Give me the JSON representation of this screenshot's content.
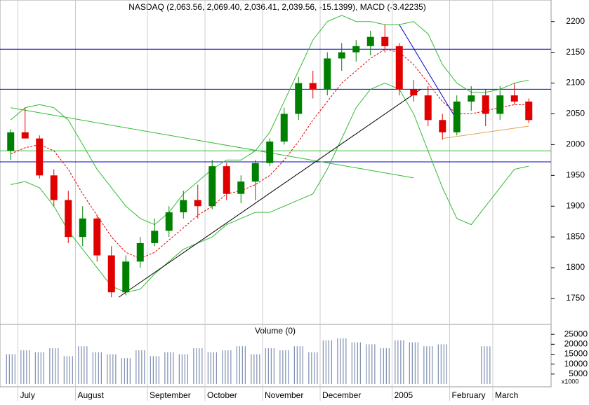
{
  "chart_data": [
    {
      "type": "candlestick",
      "title": "NASDAQ (2,063.56, 2,069.40, 2,036.41, 2,039.56, -15.1399), MACD (-3.42235)",
      "categories": [
        null,
        "July",
        null,
        null,
        null,
        "August",
        null,
        null,
        null,
        null,
        "September",
        null,
        null,
        null,
        "October",
        null,
        null,
        null,
        "November",
        null,
        null,
        null,
        "December",
        null,
        null,
        null,
        null,
        "2005",
        null,
        null,
        null,
        "February",
        null,
        null,
        "March",
        null,
        null
      ],
      "open": [
        1990,
        2020,
        2010,
        1950,
        1910,
        1850,
        1880,
        1820,
        1760,
        1810,
        1840,
        1860,
        1890,
        1910,
        1900,
        1965,
        1920,
        1940,
        1970,
        2005,
        2050,
        2100,
        2090,
        2140,
        2150,
        2160,
        2175,
        2160,
        2090,
        2080,
        2040,
        2020,
        2070,
        2080,
        2050,
        2080,
        2070
      ],
      "high": [
        2025,
        2060,
        2015,
        1960,
        1925,
        1900,
        1885,
        1835,
        1820,
        1850,
        1880,
        1900,
        1925,
        1935,
        1975,
        1970,
        1950,
        1975,
        2010,
        2060,
        2110,
        2120,
        2150,
        2165,
        2170,
        2185,
        2195,
        2165,
        2105,
        2095,
        2050,
        2080,
        2095,
        2090,
        2095,
        2100,
        2075
      ],
      "low": [
        1975,
        2010,
        1945,
        1900,
        1840,
        1835,
        1810,
        1752,
        1755,
        1800,
        1835,
        1850,
        1880,
        1880,
        1895,
        1910,
        1905,
        1910,
        1965,
        2000,
        2040,
        2075,
        2080,
        2120,
        2135,
        2145,
        2150,
        2080,
        2070,
        2030,
        2008,
        2015,
        2055,
        2030,
        2040,
        2065,
        2035
      ],
      "close": [
        2020,
        2010,
        1950,
        1910,
        1850,
        1880,
        1820,
        1760,
        1810,
        1840,
        1860,
        1890,
        1910,
        1900,
        1965,
        1920,
        1940,
        1970,
        2005,
        2050,
        2100,
        2090,
        2140,
        2150,
        2160,
        2175,
        2160,
        2090,
        2080,
        2040,
        2020,
        2070,
        2080,
        2050,
        2080,
        2070,
        2040
      ],
      "up_color": "#008000",
      "down_color": "#e00000",
      "overlays": [
        {
          "color": "#e00000",
          "dashed": true,
          "values": [
            1985,
            1995,
            2000,
            1990,
            1960,
            1920,
            1885,
            1850,
            1825,
            1815,
            1825,
            1845,
            1865,
            1885,
            1900,
            1920,
            1925,
            1935,
            1950,
            1975,
            2005,
            2040,
            2070,
            2100,
            2120,
            2140,
            2155,
            2150,
            2130,
            2100,
            2070,
            2050,
            2050,
            2055,
            2060,
            2065,
            2065
          ]
        },
        {
          "color": "#33bb33",
          "dashed": false,
          "values": [
            2040,
            2060,
            2065,
            2060,
            2040,
            2000,
            1960,
            1930,
            1900,
            1880,
            1870,
            1890,
            1920,
            1940,
            1960,
            1975,
            1975,
            1990,
            2020,
            2070,
            2120,
            2170,
            2200,
            2210,
            2200,
            2200,
            2195,
            2195,
            2200,
            2180,
            2130,
            2100,
            2085,
            2085,
            2090,
            2100,
            2105
          ]
        },
        {
          "color": "#33bb33",
          "dashed": false,
          "values": [
            1935,
            1940,
            1930,
            1900,
            1860,
            1830,
            1800,
            1770,
            1760,
            1765,
            1790,
            1810,
            1830,
            1840,
            1850,
            1870,
            1880,
            1890,
            1890,
            1900,
            1910,
            1920,
            1960,
            2010,
            2060,
            2090,
            2100,
            2090,
            2050,
            1990,
            1930,
            1880,
            1870,
            1900,
            1930,
            1960,
            1965
          ]
        }
      ],
      "hlines": [
        {
          "value": 2155,
          "color": "#0000cc"
        },
        {
          "value": 2090,
          "color": "#0000cc"
        },
        {
          "value": 1990,
          "color": "#33bb33"
        },
        {
          "value": 1972,
          "color": "#0000cc"
        }
      ],
      "trendlines": [
        {
          "x": [
            7.5,
            28.5
          ],
          "y": [
            1752,
            2090
          ],
          "color": "#000000"
        },
        {
          "x": [
            0,
            28
          ],
          "y": [
            2060,
            1946
          ],
          "color": "#33bb33"
        },
        {
          "x": [
            27,
            31
          ],
          "y": [
            2195,
            2040
          ],
          "color": "#0000cc"
        },
        {
          "x": [
            30,
            36
          ],
          "y": [
            2010,
            2030
          ],
          "color": "#e8a050"
        }
      ],
      "ylim": [
        1709,
        2235
      ],
      "yticks": [
        1750,
        1800,
        1850,
        1900,
        1950,
        2000,
        2050,
        2100,
        2150,
        2200
      ]
    },
    {
      "type": "bar",
      "title": "Volume (0)",
      "unit_label": "x1000",
      "color": "#7f8fb0",
      "values": [
        15000,
        17000,
        16000,
        18000,
        14000,
        19000,
        16000,
        15000,
        13000,
        17000,
        14000,
        16000,
        15000,
        18000,
        16000,
        17000,
        19000,
        15000,
        18000,
        17000,
        19000,
        16000,
        22000,
        23000,
        21000,
        20000,
        18000,
        22000,
        21000,
        19000,
        20000,
        null,
        null,
        19000,
        null,
        null,
        null
      ],
      "ylim": [
        0,
        30000
      ],
      "yticks": [
        5000,
        10000,
        15000,
        20000,
        25000
      ]
    }
  ]
}
